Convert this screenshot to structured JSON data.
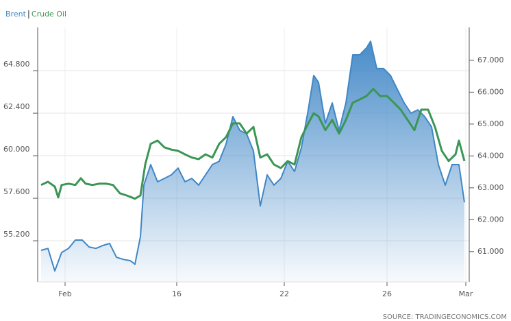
{
  "chart_data": {
    "type": "line",
    "source": "SOURCE: TRADINGECONOMICS.COM",
    "xlim": [
      55,
      685
    ],
    "xticks": [
      {
        "value": 95,
        "label": "Feb"
      },
      {
        "value": 258,
        "label": "16"
      },
      {
        "value": 415,
        "label": "22"
      },
      {
        "value": 565,
        "label": "26"
      },
      {
        "value": 680,
        "label": "Mar"
      }
    ],
    "ylim": [
      52.88,
      67.24
    ],
    "yticks": [
      {
        "value": 55.2,
        "label": "55.200"
      },
      {
        "value": 57.6,
        "label": "57.600"
      },
      {
        "value": 60,
        "label": "60.000"
      },
      {
        "value": 62.4,
        "label": "62.400"
      },
      {
        "value": 64.8,
        "label": "64.800"
      }
    ],
    "y2lim": [
      60.05,
      68.03
    ],
    "y2ticks": [
      {
        "value": 61,
        "label": "61.000"
      },
      {
        "value": 62,
        "label": "62.000"
      },
      {
        "value": 63,
        "label": "63.000"
      },
      {
        "value": 64,
        "label": "64.000"
      },
      {
        "value": 65,
        "label": "65.000"
      },
      {
        "value": 66,
        "label": "66.000"
      },
      {
        "value": 67,
        "label": "67.000"
      }
    ],
    "grid": true,
    "legend": "top-left",
    "series": [
      {
        "name": "Brent",
        "color": "#3f86c6",
        "area": true,
        "x": [
          60,
          70,
          80,
          90,
          100,
          110,
          120,
          130,
          140,
          150,
          160,
          170,
          180,
          190,
          197,
          205,
          210,
          220,
          230,
          240,
          250,
          260,
          270,
          280,
          290,
          300,
          310,
          320,
          330,
          340,
          350,
          360,
          370,
          380,
          390,
          400,
          410,
          420,
          430,
          440,
          450,
          458,
          465,
          475,
          485,
          495,
          505,
          515,
          525,
          535,
          541,
          550,
          560,
          570,
          580,
          590,
          600,
          610,
          620,
          630,
          640,
          650,
          660,
          670,
          678
        ],
        "values": [
          54.66,
          54.77,
          53.5,
          54.54,
          54.77,
          55.24,
          55.24,
          54.85,
          54.77,
          54.93,
          55.05,
          54.27,
          54.15,
          54.08,
          53.88,
          55.43,
          58.34,
          59.5,
          58.53,
          58.72,
          58.92,
          59.3,
          58.53,
          58.72,
          58.34,
          58.92,
          59.5,
          59.69,
          60.66,
          62.21,
          61.43,
          61.24,
          60.27,
          57.17,
          58.92,
          58.34,
          58.72,
          59.69,
          59.11,
          60.46,
          62.59,
          64.53,
          64.14,
          61.82,
          62.98,
          61.43,
          62.98,
          65.69,
          65.69,
          66.08,
          66.46,
          64.92,
          64.92,
          64.53,
          63.75,
          62.98,
          62.4,
          62.59,
          62.21,
          61.63,
          59.5,
          58.34,
          59.5,
          59.5,
          57.37
        ]
      },
      {
        "name": "Crude Oil",
        "color": "#3b9655",
        "axis": "y2",
        "x": [
          60,
          70,
          80,
          85,
          90,
          100,
          110,
          118,
          125,
          135,
          145,
          155,
          165,
          175,
          185,
          197,
          205,
          212,
          220,
          230,
          240,
          250,
          260,
          270,
          280,
          290,
          300,
          310,
          320,
          330,
          340,
          350,
          360,
          370,
          380,
          390,
          400,
          410,
          420,
          430,
          440,
          450,
          458,
          465,
          475,
          485,
          495,
          505,
          515,
          525,
          535,
          545,
          555,
          565,
          575,
          585,
          595,
          605,
          615,
          625,
          635,
          645,
          655,
          665,
          670,
          678
        ],
        "values": [
          63.09,
          63.19,
          63.04,
          62.7,
          63.09,
          63.13,
          63.09,
          63.3,
          63.13,
          63.09,
          63.13,
          63.13,
          63.09,
          62.83,
          62.76,
          62.66,
          62.76,
          63.73,
          64.38,
          64.48,
          64.27,
          64.2,
          64.16,
          64.05,
          63.95,
          63.9,
          64.05,
          63.95,
          64.38,
          64.59,
          65.02,
          65.02,
          64.7,
          64.91,
          63.95,
          64.05,
          63.73,
          63.62,
          63.84,
          63.73,
          64.59,
          65.02,
          65.34,
          65.24,
          64.81,
          65.13,
          64.7,
          65.13,
          65.67,
          65.77,
          65.88,
          66.1,
          65.88,
          65.88,
          65.67,
          65.45,
          65.13,
          64.81,
          65.45,
          65.45,
          64.91,
          64.16,
          63.84,
          64.05,
          64.48,
          63.84
        ]
      }
    ]
  }
}
